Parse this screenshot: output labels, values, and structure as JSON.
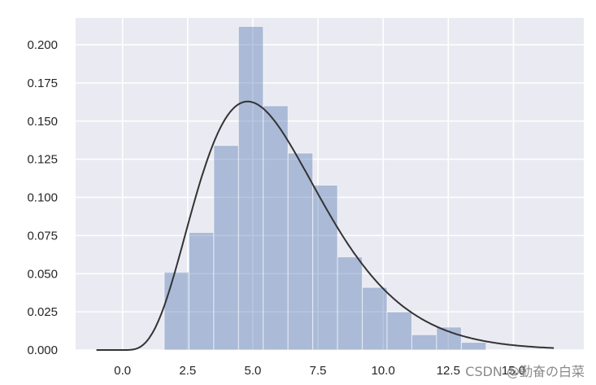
{
  "chart_data": {
    "type": "bar",
    "title": "",
    "xlabel": "",
    "ylabel": "",
    "xlim": [
      -1.8,
      17.7
    ],
    "ylim": [
      0,
      0.2176
    ],
    "grid": true,
    "xticks": [
      0.0,
      2.5,
      5.0,
      7.5,
      10.0,
      12.5,
      15.0
    ],
    "xtick_labels": [
      "0.0",
      "2.5",
      "5.0",
      "7.5",
      "10.0",
      "12.5",
      "15.0"
    ],
    "yticks": [
      0.0,
      0.025,
      0.05,
      0.075,
      0.1,
      0.125,
      0.15,
      0.175,
      0.2
    ],
    "ytick_labels": [
      "0.000",
      "0.025",
      "0.050",
      "0.075",
      "0.100",
      "0.125",
      "0.150",
      "0.175",
      "0.200"
    ],
    "bin_edges": [
      1.6,
      2.55,
      3.5,
      4.45,
      5.4,
      6.35,
      7.3,
      8.25,
      9.2,
      10.15,
      11.1,
      12.05,
      13.0,
      13.95
    ],
    "values": [
      0.051,
      0.077,
      0.134,
      0.212,
      0.16,
      0.129,
      0.108,
      0.061,
      0.041,
      0.025,
      0.01,
      0.015,
      0.005
    ],
    "series": [
      {
        "name": "",
        "type": "histogram"
      },
      {
        "name": "",
        "type": "density",
        "distribution": "gamma",
        "shape": 5,
        "scale": 1.2
      }
    ],
    "colors": {
      "bar": "#4c72b0",
      "bar_opacity": 0.4,
      "line": "#333333",
      "plot_bg": "#eaeaf2",
      "grid": "#ffffff"
    }
  },
  "watermark": "CSDN @勤奋の白菜"
}
